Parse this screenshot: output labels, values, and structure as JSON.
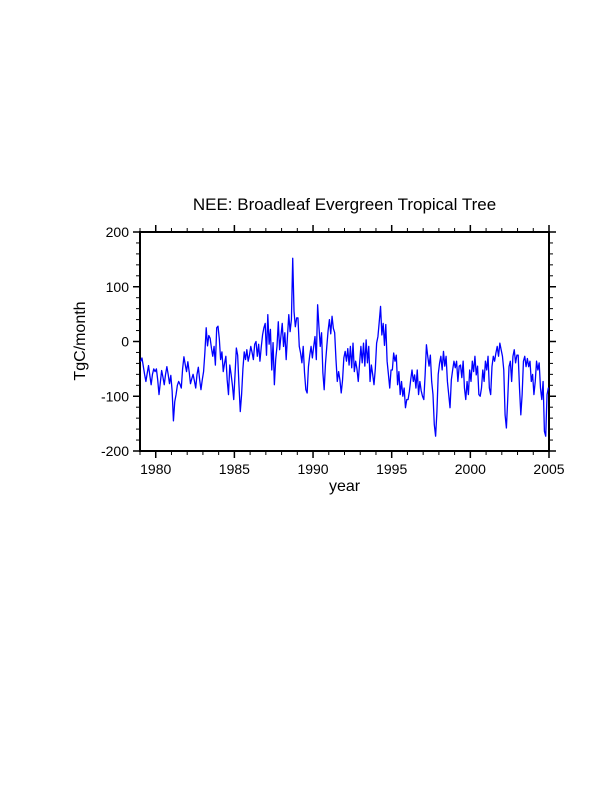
{
  "page": {
    "background_color": "#ffffff",
    "text_color": "#000000"
  },
  "chart_data": {
    "type": "line",
    "title": "NEE: Broadleaf Evergreen Tropical Tree",
    "xlabel": "year",
    "ylabel": "TgC/month",
    "xlim": [
      1979,
      2005
    ],
    "ylim": [
      -200,
      200
    ],
    "grid": false,
    "legend": "none",
    "frame_color": "#000000",
    "x_axis": {
      "major_ticks": [
        1980,
        1985,
        1990,
        1995,
        2000,
        2005
      ],
      "major_tick_labels": [
        "1980",
        "1985",
        "1990",
        "1995",
        "2000",
        "2005"
      ],
      "minor_tick_step": 1
    },
    "y_axis": {
      "major_ticks": [
        -200,
        -100,
        0,
        100,
        200
      ],
      "major_tick_labels": [
        "-200",
        "-100",
        "0",
        "100",
        "200"
      ],
      "minor_tick_step": 20
    },
    "series": [
      {
        "name": "NEE",
        "color": "#0000ff",
        "frequency": "monthly",
        "start_year": 1979,
        "end_year": 2004,
        "values": [
          -36,
          -30,
          -45,
          -60,
          -73,
          -58,
          -44,
          -62,
          -79,
          -60,
          -50,
          -55,
          -50,
          -70,
          -97,
          -75,
          -53,
          -65,
          -79,
          -60,
          -46,
          -60,
          -77,
          -62,
          -90,
          -145,
          -110,
          -97,
          -80,
          -73,
          -78,
          -85,
          -50,
          -28,
          -42,
          -55,
          -37,
          -55,
          -77,
          -68,
          -60,
          -72,
          -85,
          -60,
          -47,
          -70,
          -88,
          -70,
          -55,
          -20,
          25,
          -8,
          11,
          6,
          -12,
          -27,
          -9,
          -43,
          25,
          28,
          5,
          -33,
          -19,
          -55,
          -40,
          -27,
          -70,
          -97,
          -43,
          -60,
          -80,
          -106,
          -60,
          -12,
          -25,
          -80,
          -128,
          -97,
          -50,
          -19,
          -33,
          -15,
          -36,
          -25,
          -9,
          -20,
          -33,
          -5,
          0,
          -27,
          -5,
          -36,
          -10,
          12,
          25,
          33,
          -25,
          49,
          -5,
          22,
          -52,
          -2,
          -79,
          -33,
          -9,
          36,
          -15,
          10,
          33,
          -9,
          16,
          -33,
          10,
          49,
          18,
          40,
          152,
          55,
          27,
          43,
          43,
          -9,
          -21,
          -39,
          -9,
          -57,
          -88,
          -94,
          -46,
          -25,
          -9,
          -30,
          -9,
          9,
          -33,
          67,
          27,
          -9,
          16,
          -57,
          -88,
          -40,
          -9,
          20,
          40,
          14,
          46,
          24,
          16,
          -33,
          -73,
          -55,
          -70,
          -94,
          -71,
          -30,
          -18,
          -36,
          -13,
          -43,
          -9,
          -48,
          -3,
          -55,
          -36,
          -50,
          -73,
          -40,
          -9,
          -39,
          -3,
          -45,
          3,
          -39,
          -9,
          -73,
          -43,
          -60,
          -79,
          -50,
          -3,
          9,
          36,
          64,
          12,
          33,
          -7,
          31,
          -36,
          -60,
          -85,
          -52,
          -52,
          -21,
          -36,
          -25,
          -79,
          -55,
          -97,
          -73,
          -100,
          -85,
          -121,
          -106,
          -106,
          -91,
          -70,
          -52,
          -73,
          -61,
          -85,
          -52,
          -97,
          -73,
          -90,
          -100,
          -106,
          -61,
          -6,
          -27,
          -45,
          -25,
          -73,
          -97,
          -152,
          -173,
          -128,
          -60,
          -40,
          -27,
          -52,
          -18,
          -45,
          -27,
          -73,
          -97,
          -121,
          -70,
          -52,
          -36,
          -48,
          -36,
          -73,
          -45,
          -43,
          -66,
          -36,
          -85,
          -106,
          -73,
          -97,
          -52,
          -73,
          -36,
          -55,
          -27,
          -61,
          -45,
          -97,
          -100,
          -85,
          -52,
          -73,
          -36,
          -52,
          -27,
          -85,
          -97,
          -46,
          -27,
          -36,
          -21,
          -9,
          -27,
          -3,
          -15,
          -27,
          -52,
          -134,
          -158,
          -106,
          -46,
          -36,
          -73,
          -27,
          -15,
          -39,
          -25,
          -25,
          -85,
          -134,
          -97,
          -36,
          -27,
          -46,
          -31,
          -46,
          -36,
          -73,
          -60,
          -97,
          -73,
          -36,
          -52,
          -39,
          -85,
          -106,
          -73,
          -164,
          -173,
          -97,
          -85
        ]
      }
    ]
  }
}
